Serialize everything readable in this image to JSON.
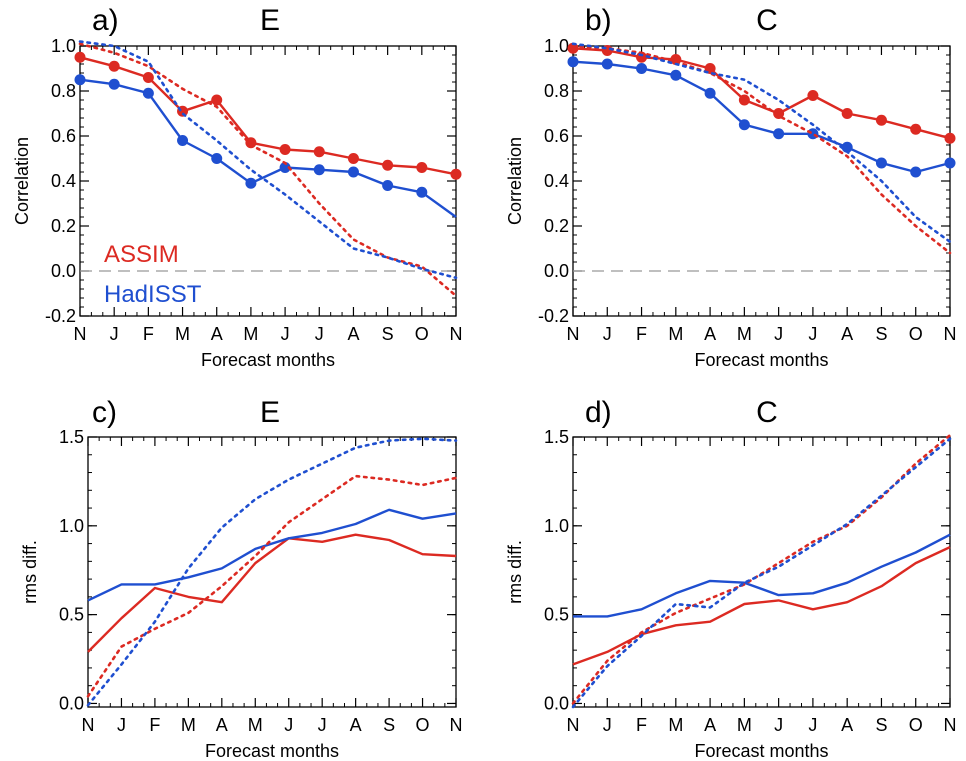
{
  "chart_data": [
    {
      "type": "line",
      "panel_label": "a)",
      "title": "E",
      "xlabel": "Forecast months",
      "ylabel": "Correlation",
      "categories": [
        "N",
        "J",
        "F",
        "M",
        "A",
        "M",
        "J",
        "J",
        "A",
        "S",
        "O",
        "N"
      ],
      "ylim": [
        -0.2,
        1.0
      ],
      "yticks": [
        -0.2,
        0.0,
        0.2,
        0.4,
        0.6,
        0.8,
        1.0
      ],
      "ytick_labels": [
        "-0.2",
        "0.0",
        "0.2",
        "0.4",
        "0.6",
        "0.8",
        "1.0"
      ],
      "zero_line": true,
      "legend": [
        {
          "name": "ASSIM",
          "color": "#dc2a22"
        },
        {
          "name": "HadISST",
          "color": "#1f4fd0"
        }
      ],
      "series": [
        {
          "name": "ASSIM",
          "style": "solid-markers",
          "color": "#dc2a22",
          "values": [
            0.95,
            0.91,
            0.86,
            0.71,
            0.76,
            0.57,
            0.54,
            0.53,
            0.5,
            0.47,
            0.46,
            0.43
          ],
          "markers": [
            true,
            true,
            true,
            true,
            true,
            true,
            true,
            true,
            true,
            true,
            true,
            true
          ]
        },
        {
          "name": "HadISST",
          "style": "solid-markers",
          "color": "#1f4fd0",
          "values": [
            0.85,
            0.83,
            0.79,
            0.58,
            0.5,
            0.39,
            0.46,
            0.45,
            0.44,
            0.38,
            0.35,
            0.24
          ],
          "markers": [
            true,
            true,
            true,
            true,
            true,
            true,
            true,
            true,
            true,
            true,
            true,
            false
          ]
        },
        {
          "name": "ASSIM",
          "style": "dotted",
          "color": "#dc2a22",
          "values": [
            1.01,
            0.97,
            0.91,
            0.81,
            0.73,
            0.56,
            0.48,
            0.3,
            0.14,
            0.06,
            0.02,
            -0.11
          ]
        },
        {
          "name": "HadISST",
          "style": "dotted",
          "color": "#1f4fd0",
          "values": [
            1.02,
            1.0,
            0.93,
            0.7,
            0.58,
            0.45,
            0.34,
            0.22,
            0.1,
            0.06,
            0.01,
            -0.03
          ]
        }
      ]
    },
    {
      "type": "line",
      "panel_label": "b)",
      "title": "C",
      "xlabel": "Forecast months",
      "ylabel": "Correlation",
      "categories": [
        "N",
        "J",
        "F",
        "M",
        "A",
        "M",
        "J",
        "J",
        "A",
        "S",
        "O",
        "N"
      ],
      "ylim": [
        -0.2,
        1.0
      ],
      "yticks": [
        -0.2,
        0.0,
        0.2,
        0.4,
        0.6,
        0.8,
        1.0
      ],
      "ytick_labels": [
        "-0.2",
        "0.0",
        "0.2",
        "0.4",
        "0.6",
        "0.8",
        "1.0"
      ],
      "zero_line": true,
      "series": [
        {
          "name": "ASSIM",
          "style": "solid-markers",
          "color": "#dc2a22",
          "values": [
            0.99,
            0.98,
            0.95,
            0.94,
            0.9,
            0.76,
            0.7,
            0.78,
            0.7,
            0.67,
            0.63,
            0.59
          ],
          "markers": [
            true,
            true,
            true,
            true,
            true,
            true,
            true,
            true,
            true,
            true,
            true,
            true
          ]
        },
        {
          "name": "HadISST",
          "style": "solid-markers",
          "color": "#1f4fd0",
          "values": [
            0.93,
            0.92,
            0.9,
            0.87,
            0.79,
            0.65,
            0.61,
            0.61,
            0.55,
            0.48,
            0.44,
            0.48
          ],
          "markers": [
            true,
            true,
            true,
            true,
            true,
            true,
            true,
            true,
            true,
            true,
            true,
            true
          ]
        },
        {
          "name": "ASSIM",
          "style": "dotted",
          "color": "#dc2a22",
          "values": [
            1.0,
            0.99,
            0.97,
            0.93,
            0.88,
            0.8,
            0.69,
            0.61,
            0.51,
            0.34,
            0.2,
            0.08
          ]
        },
        {
          "name": "HadISST",
          "style": "dotted",
          "color": "#1f4fd0",
          "values": [
            1.01,
            0.99,
            0.96,
            0.92,
            0.88,
            0.85,
            0.76,
            0.65,
            0.53,
            0.4,
            0.24,
            0.13
          ]
        }
      ]
    },
    {
      "type": "line",
      "panel_label": "c)",
      "title": "E",
      "xlabel": "Forecast months",
      "ylabel": "rms diff.",
      "categories": [
        "N",
        "J",
        "F",
        "M",
        "A",
        "M",
        "J",
        "J",
        "A",
        "S",
        "O",
        "N"
      ],
      "ylim": [
        -0.02,
        1.5
      ],
      "yticks": [
        0.0,
        0.5,
        1.0,
        1.5
      ],
      "ytick_labels": [
        "0.0",
        "0.5",
        "1.0",
        "1.5"
      ],
      "series": [
        {
          "name": "ASSIM",
          "style": "solid",
          "color": "#dc2a22",
          "values": [
            0.29,
            0.48,
            0.65,
            0.6,
            0.57,
            0.79,
            0.93,
            0.91,
            0.95,
            0.92,
            0.84,
            0.83
          ]
        },
        {
          "name": "HadISST",
          "style": "solid",
          "color": "#1f4fd0",
          "values": [
            0.58,
            0.67,
            0.67,
            0.71,
            0.76,
            0.87,
            0.93,
            0.96,
            1.01,
            1.09,
            1.04,
            1.07
          ]
        },
        {
          "name": "ASSIM",
          "style": "dotted",
          "color": "#dc2a22",
          "values": [
            0.04,
            0.32,
            0.42,
            0.51,
            0.66,
            0.83,
            1.02,
            1.15,
            1.28,
            1.26,
            1.23,
            1.27
          ]
        },
        {
          "name": "HadISST",
          "style": "dotted",
          "color": "#1f4fd0",
          "values": [
            -0.01,
            0.22,
            0.46,
            0.76,
            0.99,
            1.15,
            1.26,
            1.35,
            1.44,
            1.48,
            1.49,
            1.48
          ]
        }
      ]
    },
    {
      "type": "line",
      "panel_label": "d)",
      "title": "C",
      "xlabel": "Forecast months",
      "ylabel": "rms diff.",
      "categories": [
        "N",
        "J",
        "F",
        "M",
        "A",
        "M",
        "J",
        "J",
        "A",
        "S",
        "O",
        "N"
      ],
      "ylim": [
        -0.02,
        1.5
      ],
      "yticks": [
        0.0,
        0.5,
        1.0,
        1.5
      ],
      "ytick_labels": [
        "0.0",
        "0.5",
        "1.0",
        "1.5"
      ],
      "series": [
        {
          "name": "ASSIM",
          "style": "solid",
          "color": "#dc2a22",
          "values": [
            0.22,
            0.29,
            0.39,
            0.44,
            0.46,
            0.56,
            0.58,
            0.53,
            0.57,
            0.66,
            0.79,
            0.88
          ]
        },
        {
          "name": "HadISST",
          "style": "solid",
          "color": "#1f4fd0",
          "values": [
            0.49,
            0.49,
            0.53,
            0.62,
            0.69,
            0.68,
            0.61,
            0.62,
            0.68,
            0.77,
            0.85,
            0.95
          ]
        },
        {
          "name": "ASSIM",
          "style": "dotted",
          "color": "#dc2a22",
          "values": [
            0.0,
            0.24,
            0.4,
            0.51,
            0.59,
            0.67,
            0.79,
            0.91,
            1.0,
            1.16,
            1.35,
            1.51
          ]
        },
        {
          "name": "HadISST",
          "style": "dotted",
          "color": "#1f4fd0",
          "values": [
            -0.02,
            0.21,
            0.38,
            0.56,
            0.54,
            0.68,
            0.77,
            0.89,
            1.01,
            1.17,
            1.33,
            1.49
          ]
        }
      ]
    }
  ]
}
